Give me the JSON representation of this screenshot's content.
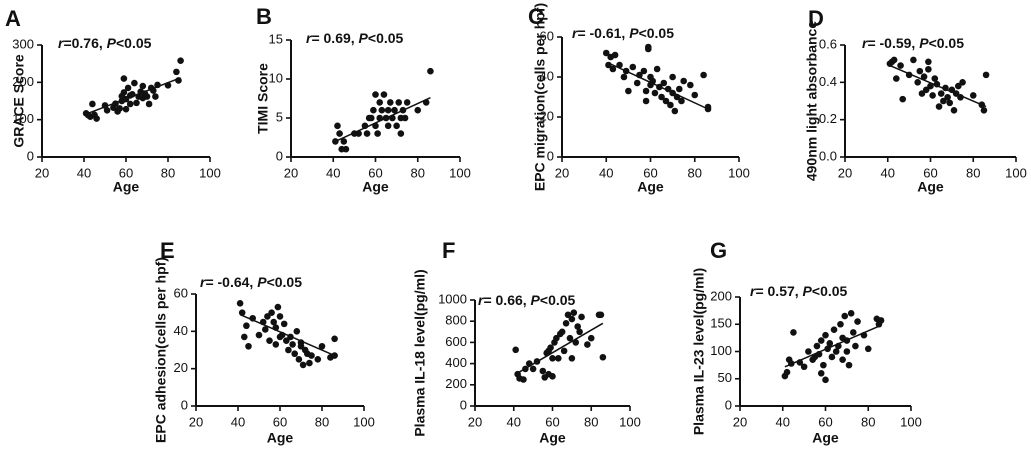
{
  "chart_data": [
    {
      "type": "scatter",
      "letter": "A",
      "ylabel": "GRACE Score",
      "xlabel": "Age",
      "r_text": "0.76",
      "p_prefix": ", ",
      "p_suffix": "<0.05",
      "xlim": [
        20,
        100
      ],
      "xticks": [
        20,
        40,
        60,
        80,
        100
      ],
      "ylim": [
        0,
        300
      ],
      "yticks": [
        0,
        100,
        200,
        300
      ],
      "fit": [
        [
          41,
          115
        ],
        [
          86,
          212
        ]
      ],
      "points": [
        [
          41,
          117
        ],
        [
          42,
          112
        ],
        [
          43,
          108
        ],
        [
          44,
          142
        ],
        [
          45,
          113
        ],
        [
          46,
          103
        ],
        [
          50,
          138
        ],
        [
          51,
          125
        ],
        [
          54,
          132
        ],
        [
          55,
          143
        ],
        [
          56,
          122
        ],
        [
          57,
          130
        ],
        [
          58,
          150
        ],
        [
          58,
          163
        ],
        [
          59,
          173
        ],
        [
          59,
          210
        ],
        [
          60,
          155
        ],
        [
          60,
          128
        ],
        [
          61,
          185
        ],
        [
          62,
          142
        ],
        [
          62,
          165
        ],
        [
          63,
          168
        ],
        [
          64,
          198
        ],
        [
          65,
          145
        ],
        [
          66,
          162
        ],
        [
          67,
          175
        ],
        [
          68,
          158
        ],
        [
          68,
          190
        ],
        [
          69,
          170
        ],
        [
          70,
          162
        ],
        [
          71,
          142
        ],
        [
          72,
          185
        ],
        [
          73,
          178
        ],
        [
          74,
          162
        ],
        [
          75,
          193
        ],
        [
          80,
          192
        ],
        [
          84,
          228
        ],
        [
          85,
          205
        ],
        [
          86,
          258
        ]
      ]
    },
    {
      "type": "scatter",
      "letter": "B",
      "ylabel": "TIMI Score",
      "xlabel": "Age",
      "r_text": " 0.69",
      "p_prefix": ", ",
      "p_suffix": "<0.05",
      "xlim": [
        20,
        100
      ],
      "xticks": [
        20,
        40,
        60,
        80,
        100
      ],
      "ylim": [
        0,
        15
      ],
      "yticks": [
        0,
        5,
        10,
        15
      ],
      "fit": [
        [
          41,
          2
        ],
        [
          86,
          7.6
        ]
      ],
      "points": [
        [
          41,
          2
        ],
        [
          42,
          4
        ],
        [
          43,
          3
        ],
        [
          44,
          1
        ],
        [
          45,
          2
        ],
        [
          46,
          1
        ],
        [
          50,
          3
        ],
        [
          52,
          3
        ],
        [
          55,
          4
        ],
        [
          56,
          3
        ],
        [
          57,
          5
        ],
        [
          58,
          5
        ],
        [
          59,
          6
        ],
        [
          60,
          8
        ],
        [
          60,
          4
        ],
        [
          61,
          3
        ],
        [
          62,
          5
        ],
        [
          62,
          7
        ],
        [
          63,
          6
        ],
        [
          64,
          8
        ],
        [
          65,
          5
        ],
        [
          66,
          6
        ],
        [
          66,
          4
        ],
        [
          67,
          7
        ],
        [
          68,
          5
        ],
        [
          69,
          6
        ],
        [
          70,
          4
        ],
        [
          71,
          7
        ],
        [
          72,
          5
        ],
        [
          72,
          3
        ],
        [
          73,
          6
        ],
        [
          74,
          5
        ],
        [
          75,
          7
        ],
        [
          80,
          6
        ],
        [
          84,
          7
        ],
        [
          86,
          11
        ]
      ]
    },
    {
      "type": "scatter",
      "letter": "C",
      "ylabel": "EPC migration(cells per hpf)",
      "xlabel": "Age",
      "r_text": " -0.61",
      "p_prefix": ", ",
      "p_suffix": "<0.05",
      "xlim": [
        20,
        100
      ],
      "xticks": [
        20,
        40,
        60,
        80,
        100
      ],
      "ylim": [
        0,
        60
      ],
      "yticks": [
        0,
        20,
        40,
        60
      ],
      "fit": [
        [
          41,
          47
        ],
        [
          86,
          24
        ]
      ],
      "points": [
        [
          40,
          52
        ],
        [
          41,
          46
        ],
        [
          42,
          50
        ],
        [
          43,
          44
        ],
        [
          44,
          51
        ],
        [
          46,
          46
        ],
        [
          48,
          40
        ],
        [
          49,
          43
        ],
        [
          50,
          33
        ],
        [
          52,
          45
        ],
        [
          54,
          37
        ],
        [
          55,
          41
        ],
        [
          57,
          43
        ],
        [
          58,
          28
        ],
        [
          58,
          33
        ],
        [
          59,
          55
        ],
        [
          59,
          54
        ],
        [
          60,
          40
        ],
        [
          60,
          36
        ],
        [
          61,
          38
        ],
        [
          62,
          32
        ],
        [
          63,
          44
        ],
        [
          64,
          35
        ],
        [
          65,
          30
        ],
        [
          66,
          37
        ],
        [
          67,
          28
        ],
        [
          68,
          34
        ],
        [
          69,
          26
        ],
        [
          70,
          32
        ],
        [
          70,
          40
        ],
        [
          71,
          23
        ],
        [
          72,
          30
        ],
        [
          73,
          34
        ],
        [
          74,
          28
        ],
        [
          75,
          38
        ],
        [
          78,
          36
        ],
        [
          80,
          31
        ],
        [
          84,
          41
        ],
        [
          86,
          24
        ],
        [
          86,
          25
        ]
      ]
    },
    {
      "type": "scatter",
      "letter": "D",
      "ylabel": "490nm light absorbance",
      "xlabel": "Age",
      "r_text": " -0.59",
      "p_prefix": ", ",
      "p_suffix": "<0.05",
      "xlim": [
        20,
        100
      ],
      "xticks": [
        20,
        40,
        60,
        80,
        100
      ],
      "ylim": [
        0.0,
        0.6
      ],
      "yticks": [
        0.0,
        0.2,
        0.4,
        0.6
      ],
      "fit": [
        [
          41,
          0.49
        ],
        [
          86,
          0.27
        ]
      ],
      "points": [
        [
          41,
          0.5
        ],
        [
          42,
          0.51
        ],
        [
          43,
          0.52
        ],
        [
          44,
          0.42
        ],
        [
          46,
          0.49
        ],
        [
          47,
          0.31
        ],
        [
          50,
          0.44
        ],
        [
          52,
          0.52
        ],
        [
          54,
          0.4
        ],
        [
          55,
          0.46
        ],
        [
          56,
          0.34
        ],
        [
          57,
          0.43
        ],
        [
          58,
          0.36
        ],
        [
          59,
          0.47
        ],
        [
          59,
          0.51
        ],
        [
          60,
          0.38
        ],
        [
          61,
          0.33
        ],
        [
          62,
          0.42
        ],
        [
          63,
          0.39
        ],
        [
          64,
          0.27
        ],
        [
          65,
          0.34
        ],
        [
          66,
          0.3
        ],
        [
          67,
          0.37
        ],
        [
          68,
          0.32
        ],
        [
          69,
          0.29
        ],
        [
          70,
          0.36
        ],
        [
          71,
          0.25
        ],
        [
          72,
          0.34
        ],
        [
          73,
          0.38
        ],
        [
          74,
          0.32
        ],
        [
          75,
          0.4
        ],
        [
          80,
          0.33
        ],
        [
          84,
          0.28
        ],
        [
          85,
          0.25
        ],
        [
          86,
          0.44
        ]
      ]
    },
    {
      "type": "scatter",
      "letter": "E",
      "ylabel": "EPC adhesion(cells per hpf)",
      "xlabel": "Age",
      "r_text": " -0.64",
      "p_prefix": ", ",
      "p_suffix": "<0.05",
      "xlim": [
        20,
        100
      ],
      "xticks": [
        20,
        40,
        60,
        80,
        100
      ],
      "ylim": [
        0,
        60
      ],
      "yticks": [
        0,
        20,
        40,
        60
      ],
      "fit": [
        [
          41,
          49
        ],
        [
          86,
          27
        ]
      ],
      "points": [
        [
          41,
          55
        ],
        [
          42,
          50
        ],
        [
          43,
          37
        ],
        [
          44,
          43
        ],
        [
          45,
          32
        ],
        [
          47,
          47
        ],
        [
          50,
          38
        ],
        [
          52,
          45
        ],
        [
          53,
          41
        ],
        [
          54,
          48
        ],
        [
          55,
          35
        ],
        [
          56,
          50
        ],
        [
          57,
          45
        ],
        [
          58,
          42
        ],
        [
          58,
          33
        ],
        [
          59,
          53
        ],
        [
          60,
          48
        ],
        [
          60,
          37
        ],
        [
          61,
          38
        ],
        [
          62,
          44
        ],
        [
          63,
          35
        ],
        [
          64,
          30
        ],
        [
          65,
          37
        ],
        [
          66,
          33
        ],
        [
          67,
          28
        ],
        [
          68,
          40
        ],
        [
          69,
          25
        ],
        [
          70,
          34
        ],
        [
          70,
          32
        ],
        [
          71,
          22
        ],
        [
          72,
          30
        ],
        [
          73,
          28
        ],
        [
          74,
          23
        ],
        [
          75,
          27
        ],
        [
          78,
          25
        ],
        [
          80,
          32
        ],
        [
          84,
          26
        ],
        [
          86,
          27
        ],
        [
          86,
          36
        ]
      ]
    },
    {
      "type": "scatter",
      "letter": "F",
      "ylabel": "Plasma IL-18 level(pg/ml)",
      "xlabel": "Age",
      "r_text": " 0.66",
      "p_prefix": ", ",
      "p_suffix": "<0.05",
      "xlim": [
        20,
        100
      ],
      "xticks": [
        20,
        40,
        60,
        80,
        100
      ],
      "ylim": [
        0,
        1000
      ],
      "yticks": [
        0,
        200,
        400,
        600,
        800,
        1000
      ],
      "fit": [
        [
          41,
          300
        ],
        [
          86,
          780
        ]
      ],
      "points": [
        [
          41,
          530
        ],
        [
          42,
          300
        ],
        [
          43,
          260
        ],
        [
          45,
          250
        ],
        [
          46,
          350
        ],
        [
          48,
          400
        ],
        [
          50,
          350
        ],
        [
          52,
          420
        ],
        [
          55,
          330
        ],
        [
          56,
          270
        ],
        [
          57,
          500
        ],
        [
          58,
          520
        ],
        [
          58,
          300
        ],
        [
          59,
          550
        ],
        [
          60,
          450
        ],
        [
          60,
          280
        ],
        [
          61,
          600
        ],
        [
          62,
          640
        ],
        [
          63,
          450
        ],
        [
          64,
          680
        ],
        [
          65,
          700
        ],
        [
          66,
          520
        ],
        [
          67,
          780
        ],
        [
          68,
          860
        ],
        [
          69,
          640
        ],
        [
          70,
          450
        ],
        [
          70,
          820
        ],
        [
          71,
          880
        ],
        [
          72,
          600
        ],
        [
          73,
          750
        ],
        [
          74,
          700
        ],
        [
          75,
          840
        ],
        [
          78,
          580
        ],
        [
          80,
          640
        ],
        [
          84,
          860
        ],
        [
          85,
          860
        ],
        [
          86,
          460
        ]
      ]
    },
    {
      "type": "scatter",
      "letter": "G",
      "ylabel": "Plasma IL-23 level(pg/ml)",
      "xlabel": "Age",
      "r_text": " 0.57",
      "p_prefix": ", ",
      "p_suffix": "<0.05",
      "xlim": [
        20,
        100
      ],
      "xticks": [
        20,
        40,
        60,
        80,
        100
      ],
      "ylim": [
        0,
        200
      ],
      "yticks": [
        0,
        50,
        100,
        150,
        200
      ],
      "fit": [
        [
          41,
          72
        ],
        [
          86,
          148
        ]
      ],
      "points": [
        [
          41,
          55
        ],
        [
          42,
          62
        ],
        [
          43,
          85
        ],
        [
          44,
          78
        ],
        [
          45,
          135
        ],
        [
          48,
          80
        ],
        [
          50,
          72
        ],
        [
          52,
          100
        ],
        [
          54,
          85
        ],
        [
          55,
          90
        ],
        [
          56,
          110
        ],
        [
          57,
          95
        ],
        [
          58,
          120
        ],
        [
          58,
          60
        ],
        [
          59,
          75
        ],
        [
          60,
          130
        ],
        [
          60,
          48
        ],
        [
          61,
          105
        ],
        [
          62,
          115
        ],
        [
          63,
          90
        ],
        [
          64,
          140
        ],
        [
          65,
          100
        ],
        [
          66,
          110
        ],
        [
          67,
          150
        ],
        [
          68,
          125
        ],
        [
          68,
          85
        ],
        [
          69,
          165
        ],
        [
          70,
          100
        ],
        [
          70,
          120
        ],
        [
          71,
          75
        ],
        [
          72,
          170
        ],
        [
          73,
          135
        ],
        [
          74,
          110
        ],
        [
          75,
          155
        ],
        [
          78,
          130
        ],
        [
          80,
          105
        ],
        [
          84,
          160
        ],
        [
          85,
          150
        ],
        [
          86,
          157
        ]
      ]
    }
  ]
}
